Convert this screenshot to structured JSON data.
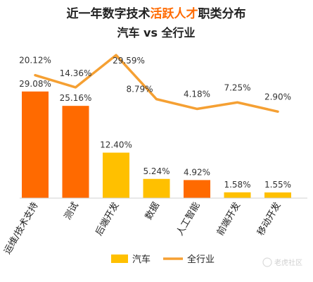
{
  "chart_data": {
    "type": "bar",
    "title": {
      "part1": "近一年数字技术",
      "highlight": "活跃人才",
      "part2": "职类分布"
    },
    "subtitle": "汽车 vs 全行业",
    "categories": [
      "运维/技术支持",
      "测试",
      "后端开发",
      "数据",
      "人工智能",
      "前端开发",
      "移动开发"
    ],
    "series": [
      {
        "name": "汽车",
        "type": "bar",
        "values": [
          29.08,
          25.16,
          12.4,
          5.24,
          4.92,
          1.58,
          1.55
        ],
        "labels": [
          "29.08%",
          "25.16%",
          "12.40%",
          "5.24%",
          "4.92%",
          "1.58%",
          "1.55%"
        ]
      },
      {
        "name": "全行业",
        "type": "line",
        "values": [
          20.12,
          14.36,
          29.59,
          8.79,
          4.18,
          7.25,
          2.9
        ],
        "labels": [
          "20.12%",
          "14.36%",
          "29.59%",
          "8.79%",
          "4.18%",
          "7.25%",
          "2.90%"
        ]
      }
    ],
    "bar_highlight_indices": [
      0,
      1,
      4
    ],
    "legend_position": "bottom",
    "grid": false,
    "colors": {
      "bar_highlight": "#FF6A00",
      "bar_default": "#FFC000",
      "line": "#F5A033",
      "title_highlight": "#FF6A00"
    }
  },
  "watermark": "老虎社区"
}
